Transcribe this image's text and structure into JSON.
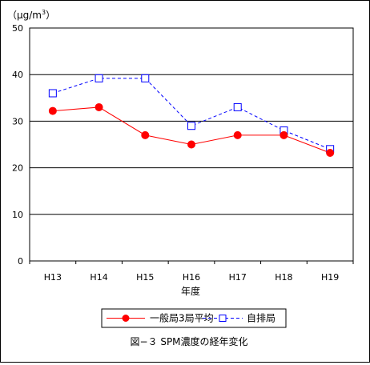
{
  "chart_data": {
    "type": "line",
    "title": "図−３ SPM濃度の経年変化",
    "unit_label": "（μg/m",
    "unit_superscript": "3",
    "unit_close": "）",
    "xlabel": "年度",
    "categories": [
      "H13",
      "H14",
      "H15",
      "H16",
      "H17",
      "H18",
      "H19"
    ],
    "ylim": [
      0,
      50
    ],
    "yticks": [
      0,
      10,
      20,
      30,
      40,
      50
    ],
    "grid": true,
    "legend_position": "bottom",
    "series": [
      {
        "name": "一般局3局平均",
        "values": [
          32.2,
          33.0,
          27.0,
          25.0,
          27.0,
          27.0,
          23.2
        ],
        "color": "#ff0000",
        "marker": "filled-circle",
        "line": "solid"
      },
      {
        "name": "自排局",
        "values": [
          36.0,
          39.2,
          39.2,
          29.0,
          33.0,
          28.0,
          24.0
        ],
        "color": "#0000ff",
        "marker": "hollow-square",
        "line": "dashed"
      }
    ]
  }
}
